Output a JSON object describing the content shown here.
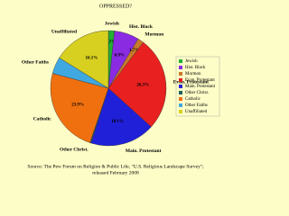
{
  "chart_data": {
    "type": "pie",
    "title": "OPPRESSED?",
    "categories": [
      "Jewish",
      "Hist. Black",
      "Mormon",
      "Evan. Protestant",
      "Main. Protestant",
      "Other Christ.",
      "Catholic",
      "Other Faiths",
      "Unaffiliated"
    ],
    "values": [
      1.7,
      6.9,
      1.7,
      26.3,
      18.1,
      0.3,
      23.9,
      4.7,
      16.1
    ],
    "value_labels": [
      "1.7%",
      "6.9%",
      "1.7%",
      "26.3%",
      "18.1%",
      null,
      "23.9%",
      null,
      "16.1%"
    ],
    "colors": [
      "#22b030",
      "#8a2be2",
      "#c87a2a",
      "#e82020",
      "#2020d8",
      "#206060",
      "#f07010",
      "#40a8e0",
      "#d8d020"
    ],
    "legend": "right",
    "source": [
      "Source: The Pew Forum on Religion & Public Life, \"U.S. Religious Landscape Survey\";",
      "released February 2008"
    ]
  }
}
